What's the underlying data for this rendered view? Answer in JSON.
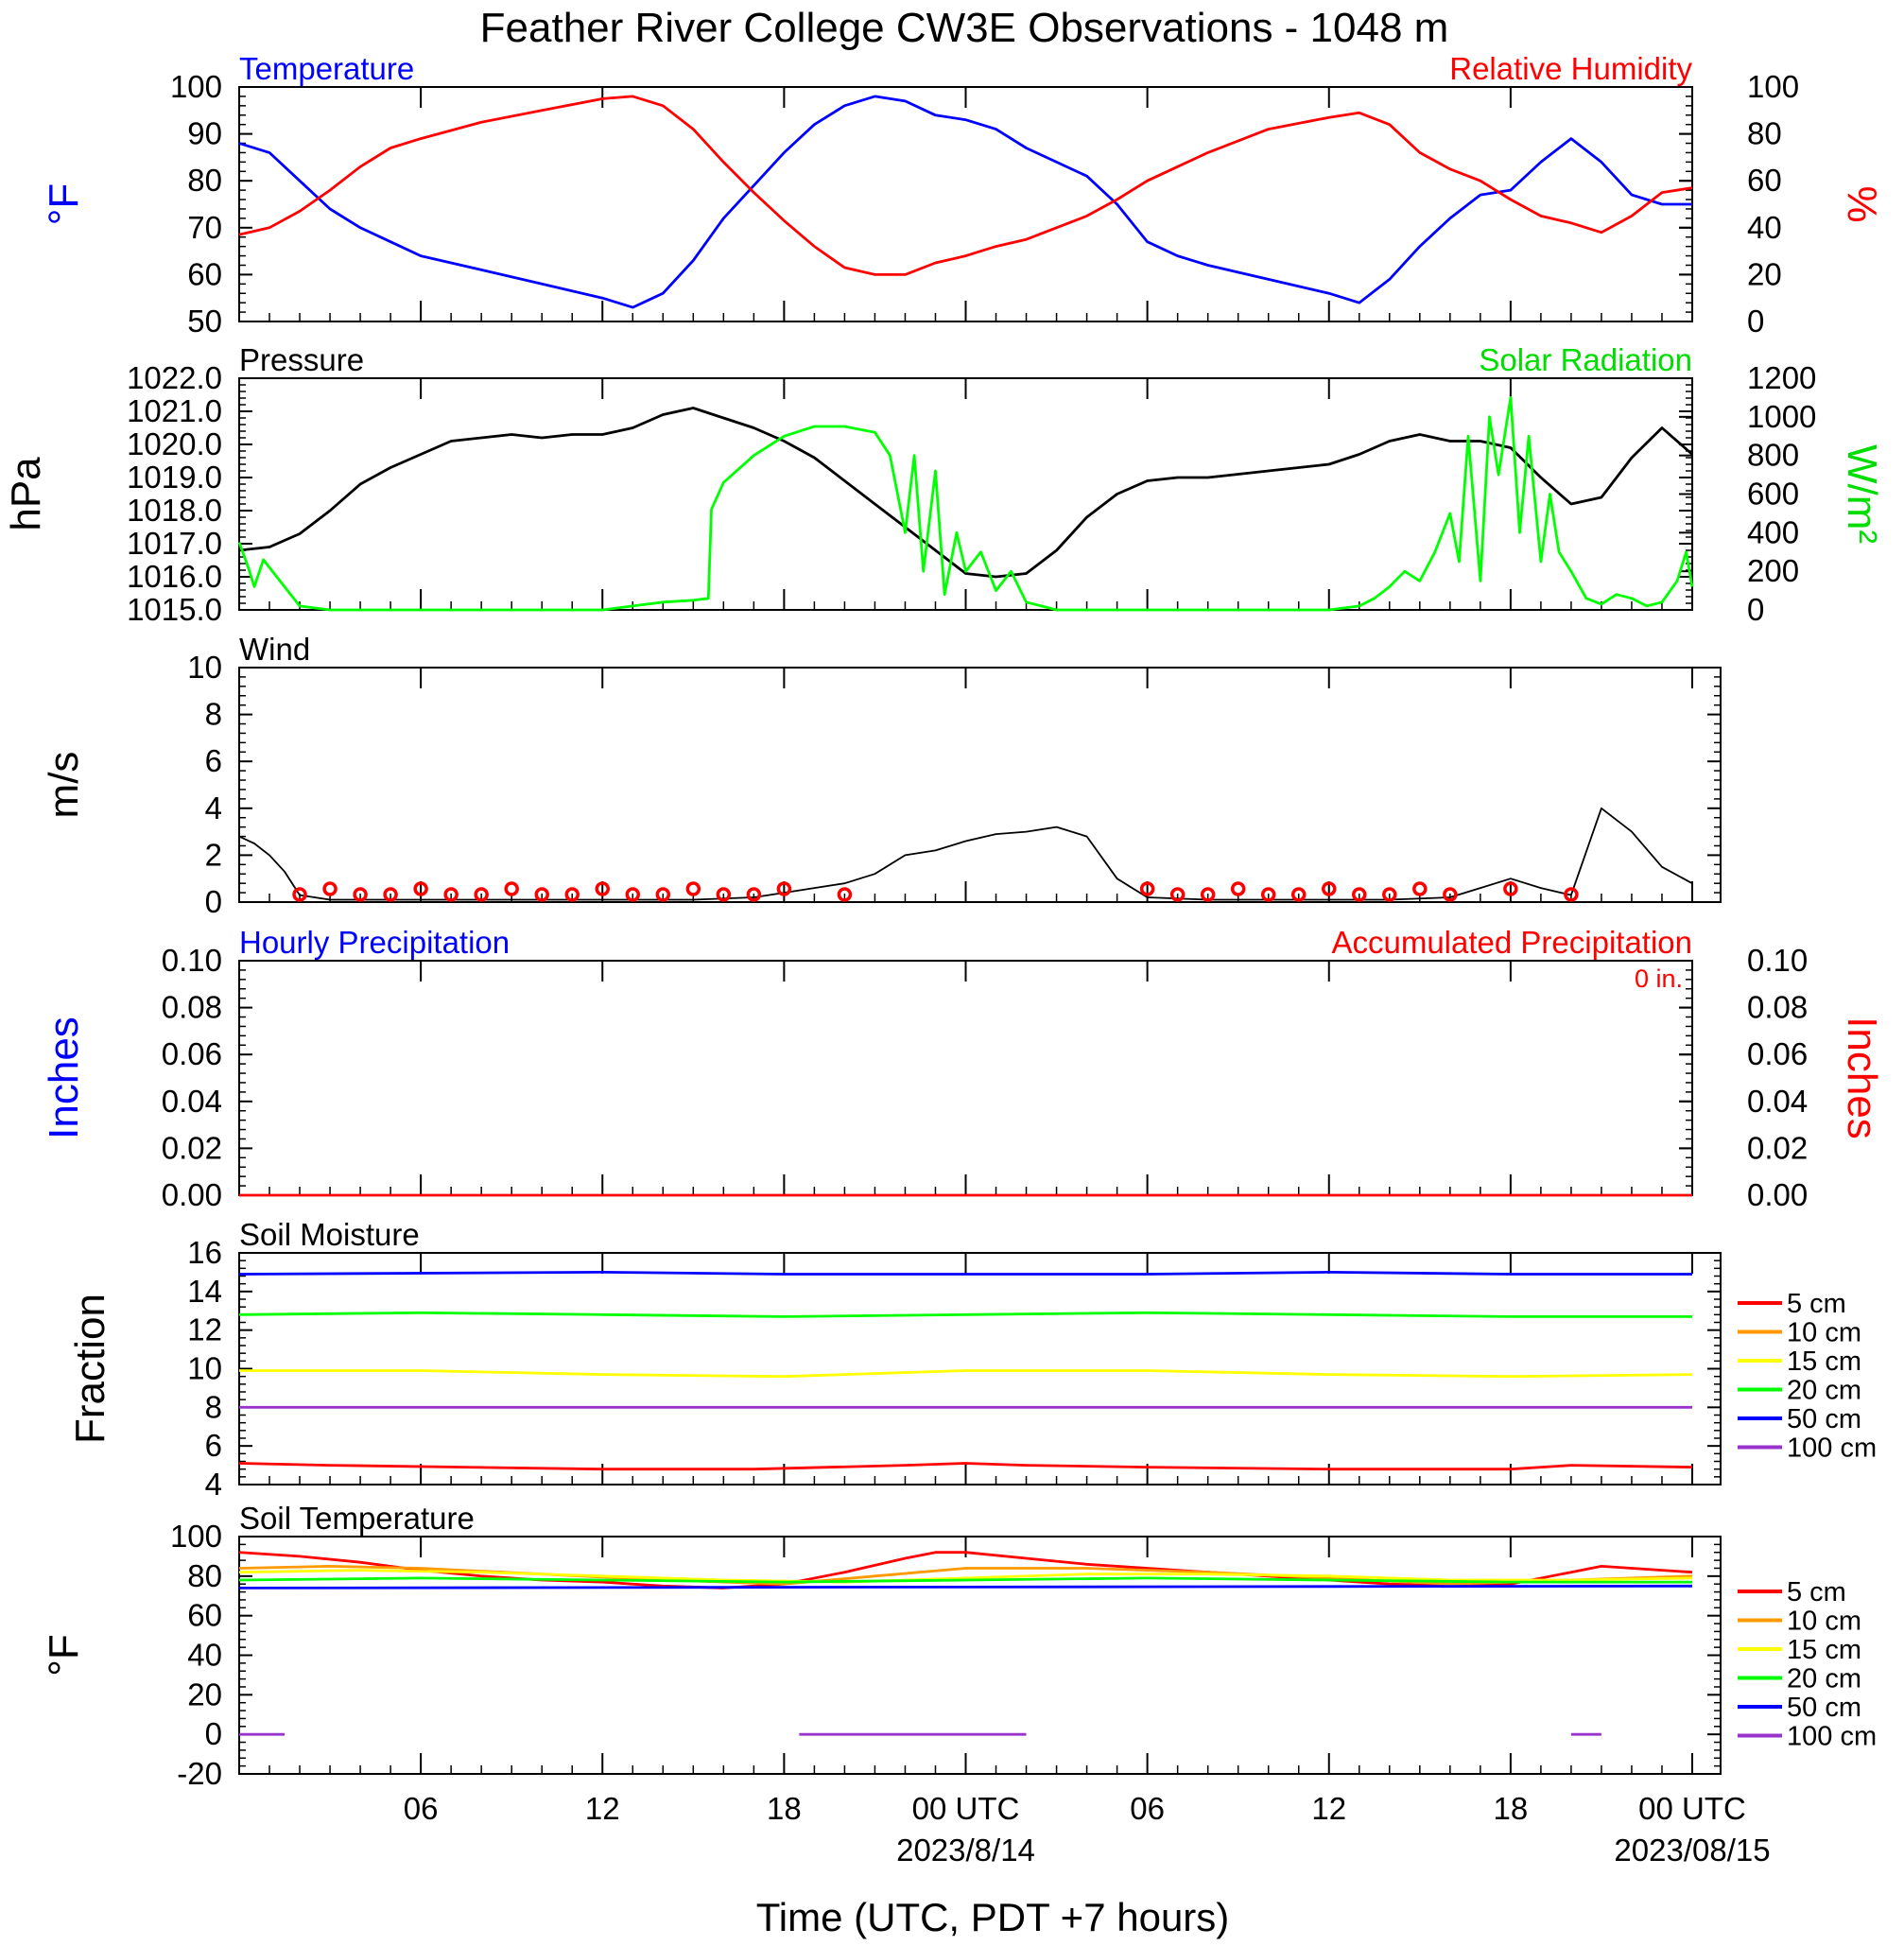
{
  "title": "Feather River College CW3E Observations - 1048 m",
  "xlabel": "Time (UTC, PDT +7 hours)",
  "x_ticks": [
    {
      "h": 6,
      "label": "06"
    },
    {
      "h": 12,
      "label": "12"
    },
    {
      "h": 18,
      "label": "18"
    },
    {
      "h": 24,
      "label": "00 UTC",
      "date": "2023/8/14"
    },
    {
      "h": 30,
      "label": "06"
    },
    {
      "h": 36,
      "label": "12"
    },
    {
      "h": 42,
      "label": "18"
    },
    {
      "h": 48,
      "label": "00 UTC",
      "date": "2023/08/15"
    }
  ],
  "chart_data": [
    {
      "type": "line",
      "panel": "temperature-humidity",
      "title_left": "Temperature",
      "title_right": "Relative Humidity",
      "ylabel_left": "°F",
      "ylabel_right": "%",
      "ylim": [
        50,
        100
      ],
      "ylim_right": [
        0,
        100
      ],
      "yticks": [
        "50",
        "60",
        "70",
        "80",
        "90",
        "100"
      ],
      "yticks_right": [
        "0",
        "20",
        "40",
        "60",
        "80",
        "100"
      ],
      "series": [
        {
          "name": "Temperature",
          "axis": "left",
          "color": "#0000ff",
          "x": [
            0,
            1,
            2,
            3,
            4,
            5,
            6,
            8,
            10,
            12,
            13,
            14,
            15,
            16,
            17,
            18,
            19,
            20,
            21,
            22,
            23,
            24,
            25,
            26,
            27,
            28,
            29,
            30,
            31,
            32,
            34,
            36,
            37,
            38,
            39,
            40,
            41,
            42,
            43,
            44,
            45,
            46,
            47,
            48
          ],
          "y": [
            88,
            86,
            80,
            74,
            70,
            67,
            64,
            61,
            58,
            55,
            53,
            56,
            63,
            72,
            79,
            86,
            92,
            96,
            98,
            97,
            94,
            93,
            91,
            87,
            84,
            81,
            75,
            67,
            64,
            62,
            59,
            56,
            54,
            59,
            66,
            72,
            77,
            78,
            84,
            89,
            84,
            77,
            75,
            75
          ]
        },
        {
          "name": "Relative Humidity",
          "axis": "right",
          "color": "#ff0000",
          "x": [
            0,
            1,
            2,
            3,
            4,
            5,
            6,
            8,
            10,
            12,
            13,
            14,
            15,
            16,
            17,
            18,
            19,
            20,
            21,
            22,
            23,
            24,
            25,
            26,
            27,
            28,
            29,
            30,
            31,
            32,
            34,
            36,
            37,
            38,
            39,
            40,
            41,
            42,
            43,
            44,
            45,
            46,
            47,
            48
          ],
          "y": [
            37,
            40,
            47,
            56,
            66,
            74,
            78,
            85,
            90,
            95,
            96,
            92,
            82,
            68,
            55,
            43,
            32,
            23,
            20,
            20,
            25,
            28,
            32,
            35,
            40,
            45,
            52,
            60,
            66,
            72,
            82,
            87,
            89,
            84,
            72,
            65,
            60,
            52,
            45,
            42,
            38,
            45,
            55,
            57
          ]
        }
      ]
    },
    {
      "type": "line",
      "panel": "pressure-solar",
      "title_left": "Pressure",
      "title_right": "Solar Radiation",
      "ylabel_left": "hPa",
      "ylabel_right": "W/m²",
      "ylim": [
        1015,
        1022
      ],
      "ylim_right": [
        0,
        1200
      ],
      "yticks": [
        "1015.0",
        "1016.0",
        "1017.0",
        "1018.0",
        "1019.0",
        "1020.0",
        "1021.0",
        "1022.0"
      ],
      "yticks_right": [
        "0",
        "200",
        "400",
        "600",
        "800",
        "1000",
        "1200"
      ],
      "series": [
        {
          "name": "Pressure",
          "axis": "left",
          "color": "#000000",
          "x": [
            0,
            1,
            2,
            3,
            4,
            5,
            6,
            7,
            8,
            9,
            10,
            11,
            12,
            13,
            14,
            15,
            16,
            17,
            18,
            19,
            20,
            21,
            22,
            23,
            24,
            25,
            26,
            27,
            28,
            29,
            30,
            31,
            32,
            33,
            34,
            35,
            36,
            37,
            38,
            39,
            40,
            41,
            42,
            43,
            44,
            45,
            46,
            47,
            48
          ],
          "y": [
            1016.8,
            1016.9,
            1017.3,
            1018.0,
            1018.8,
            1019.3,
            1019.7,
            1020.1,
            1020.2,
            1020.3,
            1020.2,
            1020.3,
            1020.3,
            1020.5,
            1020.9,
            1021.1,
            1020.8,
            1020.5,
            1020.1,
            1019.6,
            1018.9,
            1018.2,
            1017.5,
            1016.8,
            1016.1,
            1016.0,
            1016.1,
            1016.8,
            1017.8,
            1018.5,
            1018.9,
            1019.0,
            1019.0,
            1019.1,
            1019.2,
            1019.3,
            1019.4,
            1019.7,
            1020.1,
            1020.3,
            1020.1,
            1020.1,
            1019.9,
            1019.0,
            1018.2,
            1018.4,
            1019.6,
            1020.5,
            1019.7
          ]
        },
        {
          "name": "Solar Radiation",
          "axis": "right",
          "color": "#00ff00",
          "x": [
            0,
            0.3,
            0.5,
            0.8,
            1,
            1.5,
            2,
            3,
            5,
            8,
            12,
            13,
            14,
            15,
            15.5,
            15.6,
            16,
            17,
            18,
            19,
            20,
            21,
            21.5,
            22,
            22.3,
            22.6,
            23,
            23.3,
            23.7,
            24,
            24.5,
            25,
            25.5,
            26,
            26.5,
            27,
            28,
            30,
            32,
            34,
            36,
            37,
            37.5,
            38,
            38.5,
            39,
            39.5,
            40,
            40.3,
            40.6,
            41,
            41.3,
            41.6,
            42,
            42.3,
            42.6,
            43,
            43.3,
            43.6,
            44,
            44.5,
            45,
            45.5,
            46,
            46.5,
            47,
            47.5,
            47.8,
            48
          ],
          "y": [
            350,
            220,
            120,
            260,
            220,
            120,
            20,
            0,
            0,
            0,
            0,
            20,
            40,
            50,
            60,
            520,
            660,
            800,
            900,
            950,
            950,
            920,
            800,
            400,
            800,
            200,
            720,
            80,
            400,
            200,
            300,
            100,
            200,
            40,
            20,
            0,
            0,
            0,
            0,
            0,
            0,
            20,
            60,
            120,
            200,
            150,
            300,
            500,
            250,
            900,
            150,
            1000,
            700,
            1100,
            400,
            900,
            250,
            600,
            300,
            200,
            60,
            30,
            80,
            60,
            20,
            40,
            150,
            300,
            120
          ]
        }
      ]
    },
    {
      "type": "line",
      "panel": "wind",
      "title_left": "Wind",
      "ylabel_left": "m/s",
      "ylim": [
        0,
        10
      ],
      "yticks": [
        "0",
        "2",
        "4",
        "6",
        "8",
        "10"
      ],
      "series": [
        {
          "name": "Wind",
          "axis": "left",
          "color": "#000000",
          "x": [
            0,
            0.5,
            1,
            1.5,
            2,
            3,
            5,
            7,
            9,
            11,
            13,
            15,
            17,
            18,
            19,
            20,
            21,
            22,
            23,
            24,
            25,
            26,
            27,
            28,
            29,
            30,
            32,
            34,
            36,
            38,
            40,
            41,
            42,
            43,
            44,
            45,
            46,
            47,
            48
          ],
          "y": [
            2.8,
            2.5,
            2.0,
            1.3,
            0.3,
            0.1,
            0.1,
            0.1,
            0.1,
            0.1,
            0.1,
            0.1,
            0.2,
            0.4,
            0.6,
            0.8,
            1.2,
            2.0,
            2.2,
            2.6,
            2.9,
            3.0,
            3.2,
            2.8,
            1.0,
            0.2,
            0.1,
            0.1,
            0.1,
            0.1,
            0.2,
            0.6,
            1.0,
            0.6,
            0.3,
            4.0,
            3.0,
            1.5,
            0.8
          ]
        }
      ]
    },
    {
      "type": "line",
      "panel": "precipitation",
      "title_left": "Hourly Precipitation",
      "title_right": "Accumulated Precipitation",
      "annotation": "0 in.",
      "ylabel_left": "Inches",
      "ylabel_right": "Inches",
      "ylim": [
        0,
        0.1
      ],
      "ylim_right": [
        0,
        0.1
      ],
      "yticks": [
        "0.00",
        "0.02",
        "0.04",
        "0.06",
        "0.08",
        "0.10"
      ],
      "yticks_right": [
        "0.00",
        "0.02",
        "0.04",
        "0.06",
        "0.08",
        "0.10"
      ],
      "series": [
        {
          "name": "Accumulated Precipitation",
          "axis": "left",
          "color": "#ff0000",
          "x": [
            0,
            48
          ],
          "y": [
            0,
            0
          ]
        }
      ]
    },
    {
      "type": "line",
      "panel": "soil-moisture",
      "title_left": "Soil Moisture",
      "ylabel_left": "Fraction",
      "ylim": [
        4,
        16
      ],
      "yticks": [
        "4",
        "6",
        "8",
        "10",
        "12",
        "14",
        "16"
      ],
      "series": [
        {
          "name": "5 cm",
          "color": "#ff0000",
          "x": [
            0,
            3,
            12,
            17,
            22,
            24,
            26,
            30,
            36,
            42,
            44,
            48
          ],
          "y": [
            5.1,
            5.0,
            4.8,
            4.8,
            5.0,
            5.1,
            5.0,
            4.9,
            4.8,
            4.8,
            5.0,
            4.9
          ]
        },
        {
          "name": "10 cm",
          "color": "#ff9900",
          "x": [
            0,
            48
          ],
          "y": [
            null,
            null
          ]
        },
        {
          "name": "15 cm",
          "color": "#ffff00",
          "x": [
            0,
            6,
            12,
            18,
            24,
            30,
            36,
            42,
            48
          ],
          "y": [
            9.9,
            9.9,
            9.7,
            9.6,
            9.9,
            9.9,
            9.7,
            9.6,
            9.7
          ]
        },
        {
          "name": "20 cm",
          "color": "#00ff00",
          "x": [
            0,
            6,
            12,
            18,
            24,
            30,
            36,
            42,
            48
          ],
          "y": [
            12.8,
            12.9,
            12.8,
            12.7,
            12.8,
            12.9,
            12.8,
            12.7,
            12.7
          ]
        },
        {
          "name": "50 cm",
          "color": "#0000ff",
          "x": [
            0,
            12,
            18,
            24,
            30,
            36,
            42,
            48
          ],
          "y": [
            14.9,
            15.0,
            14.9,
            14.9,
            14.9,
            15.0,
            14.9,
            14.9
          ]
        },
        {
          "name": "100 cm",
          "color": "#9933cc",
          "x": [
            0,
            12,
            24,
            30,
            36,
            48
          ],
          "y": [
            8.0,
            8.0,
            8.0,
            8.0,
            8.0,
            8.0
          ]
        }
      ]
    },
    {
      "type": "line",
      "panel": "soil-temperature",
      "title_left": "Soil Temperature",
      "ylabel_left": "°F",
      "ylim": [
        -20,
        100
      ],
      "yticks": [
        "-20",
        "0",
        "20",
        "40",
        "60",
        "80",
        "100"
      ],
      "series": [
        {
          "name": "5 cm",
          "color": "#ff0000",
          "x": [
            0,
            2,
            4,
            6,
            8,
            10,
            12,
            14,
            16,
            18,
            20,
            22,
            23,
            24,
            26,
            28,
            30,
            32,
            34,
            36,
            38,
            40,
            42,
            44,
            45,
            46,
            48
          ],
          "y": [
            92,
            90,
            87,
            83,
            80,
            78,
            77,
            75,
            74,
            76,
            82,
            89,
            92,
            92,
            89,
            86,
            84,
            82,
            80,
            78,
            76,
            75,
            76,
            82,
            85,
            84,
            82
          ]
        },
        {
          "name": "10 cm",
          "color": "#ff9900",
          "x": [
            0,
            3,
            6,
            10,
            14,
            18,
            21,
            24,
            28,
            32,
            36,
            40,
            44,
            48
          ],
          "y": [
            84,
            85,
            84,
            81,
            78,
            76,
            80,
            84,
            84,
            82,
            79,
            76,
            78,
            80
          ]
        },
        {
          "name": "15 cm",
          "color": "#ffff00",
          "x": [
            0,
            4,
            8,
            12,
            16,
            20,
            24,
            28,
            32,
            36,
            40,
            44,
            48
          ],
          "y": [
            82,
            83,
            82,
            80,
            78,
            77,
            79,
            81,
            81,
            80,
            78,
            78,
            79
          ]
        },
        {
          "name": "20 cm",
          "color": "#00ff00",
          "x": [
            0,
            6,
            12,
            18,
            24,
            30,
            36,
            42,
            48
          ],
          "y": [
            78,
            79,
            78,
            77,
            78,
            79,
            78,
            77,
            77
          ]
        },
        {
          "name": "50 cm",
          "color": "#0000ff",
          "x": [
            0,
            48
          ],
          "y": [
            74,
            75
          ]
        },
        {
          "name": "100 cm",
          "color": "#9933cc",
          "segments": [
            {
              "x": [
                0,
                1.5
              ],
              "y": [
                0,
                0
              ]
            },
            {
              "x": [
                18.5,
                26
              ],
              "y": [
                0,
                0
              ]
            },
            {
              "x": [
                44,
                45
              ],
              "y": [
                0,
                0
              ]
            }
          ]
        }
      ]
    }
  ],
  "legend": {
    "soil_moisture": [
      {
        "name": "5 cm",
        "color": "#ff0000"
      },
      {
        "name": "10 cm",
        "color": "#ff9900"
      },
      {
        "name": "15 cm",
        "color": "#ffff00"
      },
      {
        "name": "20 cm",
        "color": "#00ff00"
      },
      {
        "name": "50 cm",
        "color": "#0000ff"
      },
      {
        "name": "100 cm",
        "color": "#9933cc"
      }
    ],
    "soil_temperature": [
      {
        "name": "5 cm",
        "color": "#ff0000"
      },
      {
        "name": "10 cm",
        "color": "#ff9900"
      },
      {
        "name": "15 cm",
        "color": "#ffff00"
      },
      {
        "name": "20 cm",
        "color": "#00ff00"
      },
      {
        "name": "50 cm",
        "color": "#0000ff"
      },
      {
        "name": "100 cm",
        "color": "#9933cc"
      }
    ]
  }
}
